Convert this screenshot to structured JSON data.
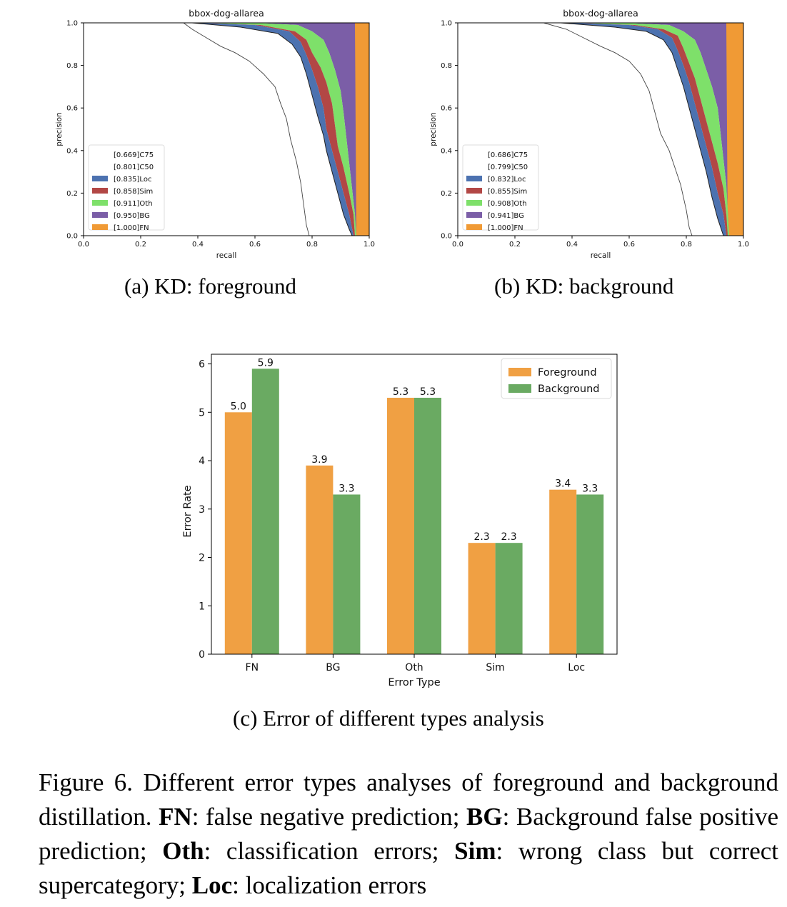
{
  "pr_panels": [
    {
      "id": "a",
      "title": "bbox-dog-allarea",
      "xlabel": "recall",
      "ylabel": "precision",
      "ticks": [
        "0.0",
        "0.2",
        "0.4",
        "0.6",
        "0.8",
        "1.0"
      ],
      "legend": [
        {
          "label": "[0.669]C75",
          "color": "#ffffff"
        },
        {
          "label": "[0.801]C50",
          "color": "#ffffff"
        },
        {
          "label": "[0.835]Loc",
          "color": "#4c72b0"
        },
        {
          "label": "[0.858]Sim",
          "color": "#b24745"
        },
        {
          "label": "[0.911]Oth",
          "color": "#7ee06a"
        },
        {
          "label": "[0.950]BG",
          "color": "#7b5ea7"
        },
        {
          "label": "[1.000]FN",
          "color": "#f09a35"
        }
      ],
      "caption": "(a) KD: foreground"
    },
    {
      "id": "b",
      "title": "bbox-dog-allarea",
      "xlabel": "recall",
      "ylabel": "precision",
      "ticks": [
        "0.0",
        "0.2",
        "0.4",
        "0.6",
        "0.8",
        "1.0"
      ],
      "legend": [
        {
          "label": "[0.686]C75",
          "color": "#ffffff"
        },
        {
          "label": "[0.799]C50",
          "color": "#ffffff"
        },
        {
          "label": "[0.832]Loc",
          "color": "#4c72b0"
        },
        {
          "label": "[0.855]Sim",
          "color": "#b24745"
        },
        {
          "label": "[0.908]Oth",
          "color": "#7ee06a"
        },
        {
          "label": "[0.941]BG",
          "color": "#7b5ea7"
        },
        {
          "label": "[1.000]FN",
          "color": "#f09a35"
        }
      ],
      "caption": "(b) KD: background"
    }
  ],
  "chart_data": {
    "type": "bar",
    "categories": [
      "FN",
      "BG",
      "Oth",
      "Sim",
      "Loc"
    ],
    "series": [
      {
        "name": "Foreground",
        "values": [
          5.0,
          3.9,
          5.3,
          2.3,
          3.4
        ],
        "labels": [
          "5.0",
          "3.9",
          "5.3",
          "2.3",
          "3.4"
        ],
        "color": "#f0a043"
      },
      {
        "name": "Background",
        "values": [
          5.9,
          3.3,
          5.3,
          2.3,
          3.3
        ],
        "labels": [
          "5.9",
          "3.3",
          "5.3",
          "2.3",
          "3.3"
        ],
        "color": "#6aaa62"
      }
    ],
    "xlabel": "Error Type",
    "ylabel": "Error Rate",
    "ylim": [
      0,
      6.2
    ],
    "yticks": [
      "0",
      "1",
      "2",
      "3",
      "4",
      "5",
      "6"
    ],
    "legend_position": "top-right",
    "caption": "(c) Error of different types analysis"
  },
  "figure_caption": {
    "prefix": "Figure 6. Different error types analyses of foreground and background distillation. ",
    "fn_term": "FN",
    "fn_text": ": false negative prediction; ",
    "bg_term": "BG",
    "bg_text": ": Background false positive prediction; ",
    "oth_term": "Oth",
    "oth_text": ": classification errors; ",
    "sim_term": "Sim",
    "sim_text": ": wrong class but correct supercategory; ",
    "loc_term": "Loc",
    "loc_text": ": localization errors"
  }
}
